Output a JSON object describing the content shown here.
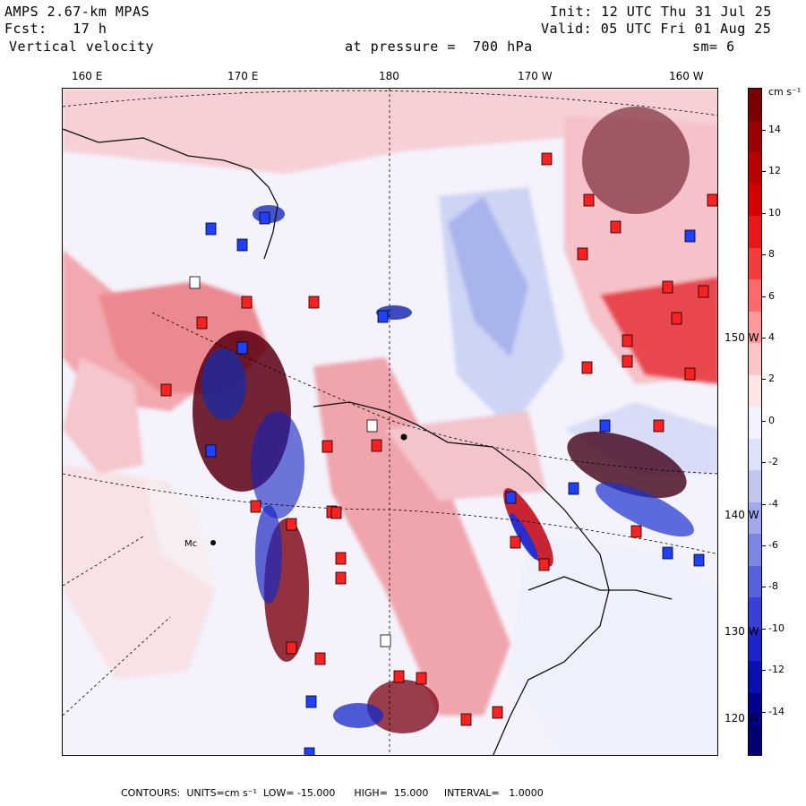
{
  "header": {
    "model": "AMPS 2.67-km MPAS",
    "init": "Init: 12 UTC Thu 31 Jul 25",
    "fcst": "Fcst:   17 h",
    "valid": "Valid: 05 UTC Fri 01 Aug 25",
    "field": "Vertical velocity",
    "level": "at pressure =  700 hPa",
    "smooth": "sm= 6"
  },
  "map": {
    "lon_labels": [
      "160 E",
      "170 E",
      "180",
      "170 W",
      "160 W"
    ],
    "lat_labels": [
      "150 W",
      "140 W",
      "130 W",
      "120 W"
    ],
    "station_label": "Mc",
    "field_colors": {
      "strong_up": "#8b0000",
      "up": "#ff2020",
      "weak_up": "#ffb0b0",
      "neutral": "#f4f4ff",
      "weak_down": "#b0b8f0",
      "down": "#2040ff",
      "strong_down": "#00008b"
    }
  },
  "colorbar": {
    "unit": "cm s⁻¹",
    "labels": [
      "14",
      "12",
      "10",
      "8",
      "6",
      "4",
      "2",
      "0",
      "-2",
      "-4",
      "-6",
      "-8",
      "-10",
      "-12",
      "-14"
    ],
    "colors": [
      "#7a0000",
      "#9b0000",
      "#b80000",
      "#d40000",
      "#e81818",
      "#f43c3c",
      "#fb6a6a",
      "#fd9a9a",
      "#ffc6c6",
      "#ffe6e6",
      "#f2f2ff",
      "#dde2fb",
      "#c0c8f2",
      "#9ea8ea",
      "#7a86e2",
      "#5862dc",
      "#3840d8",
      "#1e24cc",
      "#0a10b0",
      "#000090",
      "#000070"
    ]
  },
  "footer": {
    "text": "CONTOURS:  UNITS=cm s⁻¹  LOW= -15.000      HIGH=  15.000     INTERVAL=   1.0000"
  }
}
